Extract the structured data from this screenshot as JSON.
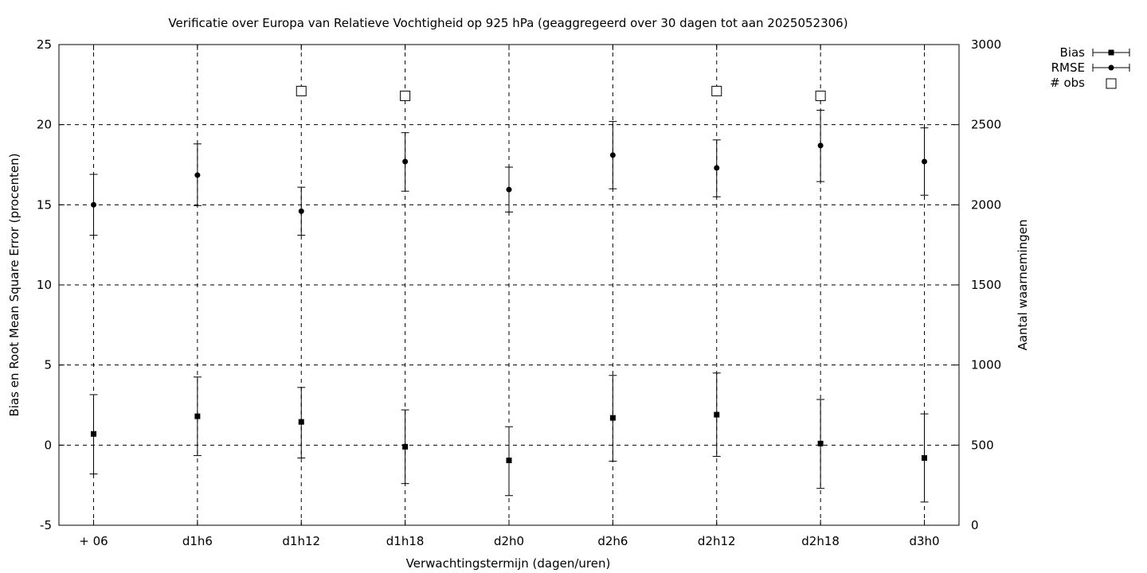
{
  "chart_data": {
    "type": "scatter",
    "title": "Verificatie over Europa van Relatieve Vochtigheid op 925 hPa (geaggregeerd over 30 dagen tot aan 2025052306)",
    "xlabel": "Verwachtingstermijn (dagen/uren)",
    "ylabel": "Bias en Root Mean Square Error (procenten)",
    "y2label": "Aantal waarnemingen",
    "categories": [
      "+ 06",
      "d1h6",
      "d1h12",
      "d1h18",
      "d2h0",
      "d2h6",
      "d2h12",
      "d2h18",
      "d3h0"
    ],
    "ylim": [
      -5,
      25
    ],
    "yticks": [
      "-5",
      "0",
      "5",
      "10",
      "15",
      "20",
      "25"
    ],
    "y2lim": [
      0,
      3000
    ],
    "y2ticks": [
      "0",
      "500",
      "1000",
      "1500",
      "2000",
      "2500",
      "3000"
    ],
    "grid": true,
    "legend_position": "top-right, outside plot",
    "series": [
      {
        "name": "Bias",
        "axis": "left",
        "marker": "filled-square",
        "values": [
          0.7,
          1.8,
          1.45,
          -0.1,
          -0.95,
          1.7,
          1.9,
          0.1,
          -0.8
        ],
        "err_low": [
          -1.8,
          -0.65,
          -0.8,
          -2.4,
          -3.15,
          -1.0,
          -0.7,
          -2.7,
          -3.55
        ],
        "err_high": [
          3.15,
          4.25,
          3.6,
          2.2,
          1.15,
          4.35,
          4.5,
          2.85,
          1.95
        ]
      },
      {
        "name": "RMSE",
        "axis": "left",
        "marker": "filled-circle",
        "values": [
          15.0,
          16.85,
          14.6,
          17.7,
          15.95,
          18.1,
          17.3,
          18.7,
          17.7
        ],
        "err_low": [
          13.1,
          14.95,
          13.1,
          15.85,
          14.55,
          16.0,
          15.5,
          16.45,
          15.6
        ],
        "err_high": [
          16.9,
          18.8,
          16.1,
          19.5,
          17.35,
          20.2,
          19.05,
          20.9,
          19.8
        ]
      },
      {
        "name": "# obs",
        "axis": "right",
        "marker": "open-square",
        "values": [
          null,
          null,
          2710,
          2680,
          null,
          null,
          2710,
          2680,
          null
        ]
      }
    ]
  }
}
